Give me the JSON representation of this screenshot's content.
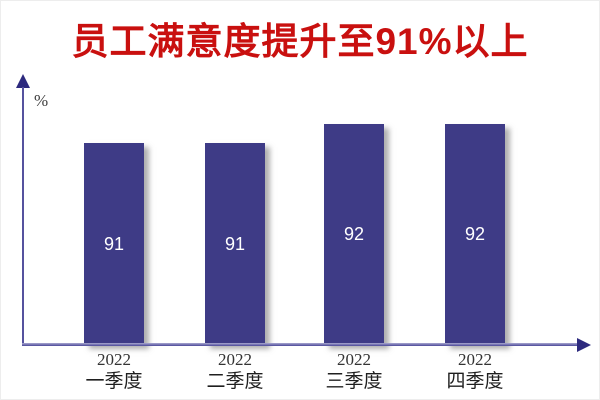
{
  "title": {
    "text": "员工满意度提升至91%以上",
    "color": "#C9100F"
  },
  "chart_data": {
    "type": "bar",
    "title": "员工满意度提升至91%以上",
    "categories": [
      "2022 一季度",
      "2022 二季度",
      "2022 三季度",
      "2022 四季度"
    ],
    "values": [
      91,
      91,
      92,
      92
    ],
    "xlabel": "",
    "ylabel": "%",
    "ylim": [
      80,
      94
    ],
    "grid": false,
    "legend": false,
    "bar_color": "#3E3B86",
    "value_label_color": "#FFFFFF",
    "axis_color": "#55529E",
    "tick_labels": [
      {
        "year": "2022",
        "quarter": "一季度"
      },
      {
        "year": "2022",
        "quarter": "二季度"
      },
      {
        "year": "2022",
        "quarter": "三季度"
      },
      {
        "year": "2022",
        "quarter": "四季度"
      }
    ]
  }
}
